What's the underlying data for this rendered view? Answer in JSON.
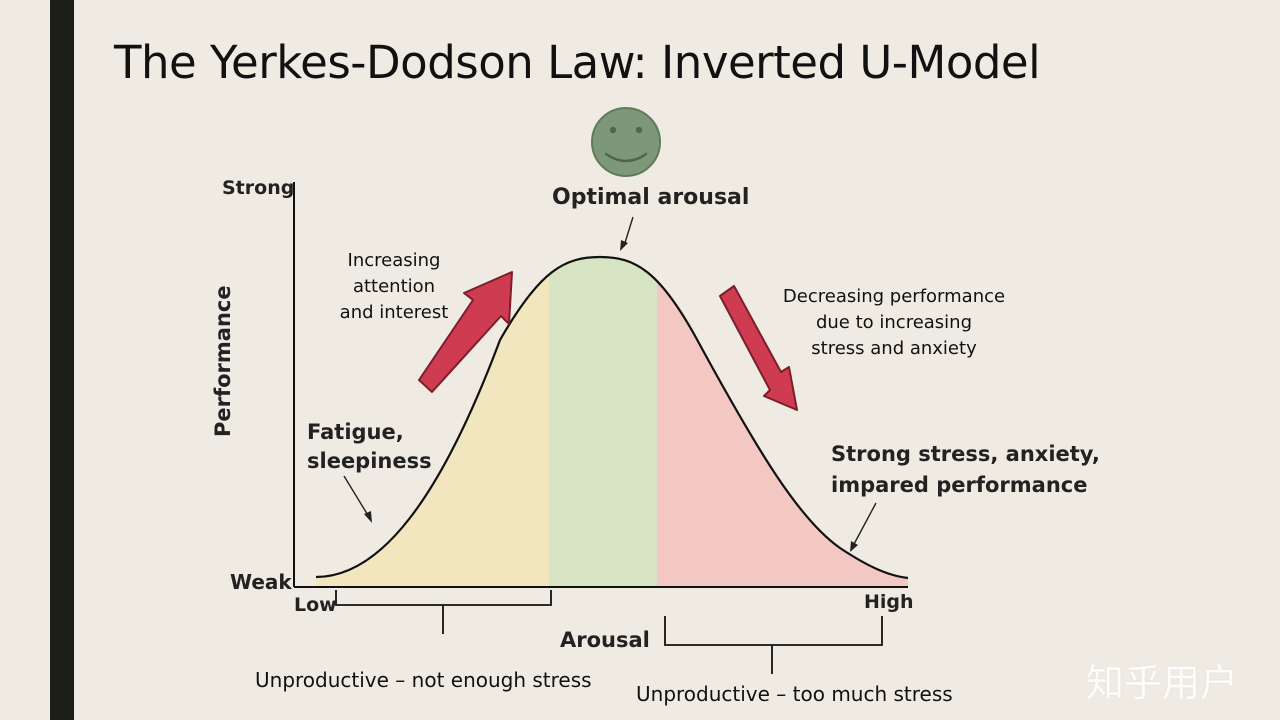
{
  "slide": {
    "title": "The Yerkes-Dodson Law: Inverted U-Model",
    "watermark": "知乎用户"
  },
  "axes": {
    "y_label": "Performance",
    "y_top": "Strong",
    "y_bottom": "Weak",
    "x_label": "Arousal",
    "x_left": "Low",
    "x_right": "High"
  },
  "annotations": {
    "optimal": "Optimal arousal",
    "increasing": [
      "Increasing",
      "attention",
      "and interest"
    ],
    "decreasing": [
      "Decreasing performance",
      "due to increasing",
      "stress and anxiety"
    ],
    "fatigue": [
      "Fatigue,",
      "sleepiness"
    ],
    "strong_stress": [
      "Strong stress, anxiety,",
      "impared performance"
    ],
    "unproductive_low": "Unproductive – not enough stress",
    "unproductive_high": "Unproductive – too much stress"
  },
  "colors": {
    "low_zone": "#f2e6bf",
    "optimal_zone": "#d7e4c3",
    "high_zone": "#f3c7c2",
    "arrow": "#cf3b50",
    "smiley": "#7d9879"
  },
  "icons": {
    "smiley": "smiley-face-icon"
  }
}
